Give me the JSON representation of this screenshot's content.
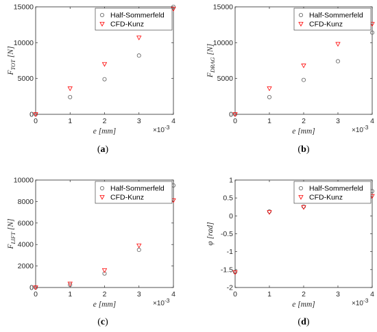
{
  "chart_data": [
    {
      "type": "scatter",
      "caption": "(a)",
      "xlabel": "e [mm]",
      "ylabel_base": "F",
      "ylabel_sub": "TOT",
      "ylabel_unit": "[N]",
      "x_multiplier": "×10",
      "x_multiplier_exp": "-3",
      "xlim": [
        0,
        4
      ],
      "ylim": [
        0,
        15000
      ],
      "xticks": [
        0,
        1,
        2,
        3,
        4
      ],
      "xtick_labels": [
        "0",
        "1",
        "2",
        "3",
        "4"
      ],
      "yticks": [
        0,
        5000,
        10000,
        15000
      ],
      "ytick_labels": [
        "0",
        "5000",
        "10000",
        "15000"
      ],
      "grid": false,
      "legend_position": "top-right",
      "series": [
        {
          "name": "Half-Sommerfeld",
          "marker": "circle",
          "color": "#595959",
          "x": [
            0,
            1,
            2,
            3,
            4
          ],
          "y": [
            0,
            2400,
            4900,
            8200,
            15000
          ]
        },
        {
          "name": "CFD-Kunz",
          "marker": "triangle-down",
          "color": "#ff0000",
          "x": [
            0,
            1,
            2,
            3,
            4
          ],
          "y": [
            0,
            3600,
            7000,
            10700,
            14700
          ]
        }
      ]
    },
    {
      "type": "scatter",
      "caption": "(b)",
      "xlabel": "e [mm]",
      "ylabel_base": "F",
      "ylabel_sub": "DRAG",
      "ylabel_unit": "[N]",
      "x_multiplier": "×10",
      "x_multiplier_exp": "-3",
      "xlim": [
        0,
        4
      ],
      "ylim": [
        0,
        15000
      ],
      "xticks": [
        0,
        1,
        2,
        3,
        4
      ],
      "xtick_labels": [
        "0",
        "1",
        "2",
        "3",
        "4"
      ],
      "yticks": [
        0,
        5000,
        10000,
        15000
      ],
      "ytick_labels": [
        "0",
        "5000",
        "10000",
        "15000"
      ],
      "grid": false,
      "legend_position": "top-right",
      "series": [
        {
          "name": "Half-Sommerfeld",
          "marker": "circle",
          "color": "#595959",
          "x": [
            0,
            1,
            2,
            3,
            4
          ],
          "y": [
            0,
            2400,
            4800,
            7400,
            11400
          ]
        },
        {
          "name": "CFD-Kunz",
          "marker": "triangle-down",
          "color": "#ff0000",
          "x": [
            0,
            1,
            2,
            3,
            4
          ],
          "y": [
            0,
            3600,
            6800,
            9800,
            12600
          ]
        }
      ]
    },
    {
      "type": "scatter",
      "caption": "(c)",
      "xlabel": "e [mm]",
      "ylabel_base": "F",
      "ylabel_sub": "LIFT",
      "ylabel_unit": "[N]",
      "x_multiplier": "×10",
      "x_multiplier_exp": "-3",
      "xlim": [
        0,
        4
      ],
      "ylim": [
        0,
        10000
      ],
      "xticks": [
        0,
        1,
        2,
        3,
        4
      ],
      "xtick_labels": [
        "0",
        "1",
        "2",
        "3",
        "4"
      ],
      "yticks": [
        0,
        2000,
        4000,
        6000,
        8000,
        10000
      ],
      "ytick_labels": [
        "0",
        "2000",
        "4000",
        "6000",
        "8000",
        "10000"
      ],
      "grid": false,
      "legend_position": "top-right",
      "series": [
        {
          "name": "Half-Sommerfeld",
          "marker": "circle",
          "color": "#595959",
          "x": [
            0,
            1,
            2,
            3,
            4
          ],
          "y": [
            0,
            250,
            1300,
            3500,
            9500
          ]
        },
        {
          "name": "CFD-Kunz",
          "marker": "triangle-down",
          "color": "#ff0000",
          "x": [
            0,
            1,
            2,
            3,
            4
          ],
          "y": [
            0,
            350,
            1600,
            3900,
            8100
          ]
        }
      ]
    },
    {
      "type": "scatter",
      "caption": "(d)",
      "xlabel": "e [mm]",
      "ylabel_base": "φ",
      "ylabel_sub": "",
      "ylabel_unit": "[rad]",
      "x_multiplier": "×10",
      "x_multiplier_exp": "-3",
      "xlim": [
        0,
        4
      ],
      "ylim": [
        -2,
        1
      ],
      "xticks": [
        0,
        1,
        2,
        3,
        4
      ],
      "xtick_labels": [
        "0",
        "1",
        "2",
        "3",
        "4"
      ],
      "yticks": [
        -2,
        -1.5,
        -1,
        -0.5,
        0,
        0.5,
        1
      ],
      "ytick_labels": [
        "-2",
        "-1.5",
        "-1",
        "-0.5",
        "0",
        "0.5",
        "1"
      ],
      "grid": false,
      "legend_position": "top-right",
      "series": [
        {
          "name": "Half-Sommerfeld",
          "marker": "circle",
          "color": "#595959",
          "x": [
            0,
            1,
            2,
            3,
            4
          ],
          "y": [
            -1.57,
            0.12,
            0.26,
            0.49,
            0.69
          ]
        },
        {
          "name": "CFD-Kunz",
          "marker": "triangle-down",
          "color": "#ff0000",
          "x": [
            0,
            1,
            2,
            3,
            4
          ],
          "y": [
            -1.58,
            0.1,
            0.24,
            0.44,
            0.55
          ]
        }
      ]
    }
  ]
}
